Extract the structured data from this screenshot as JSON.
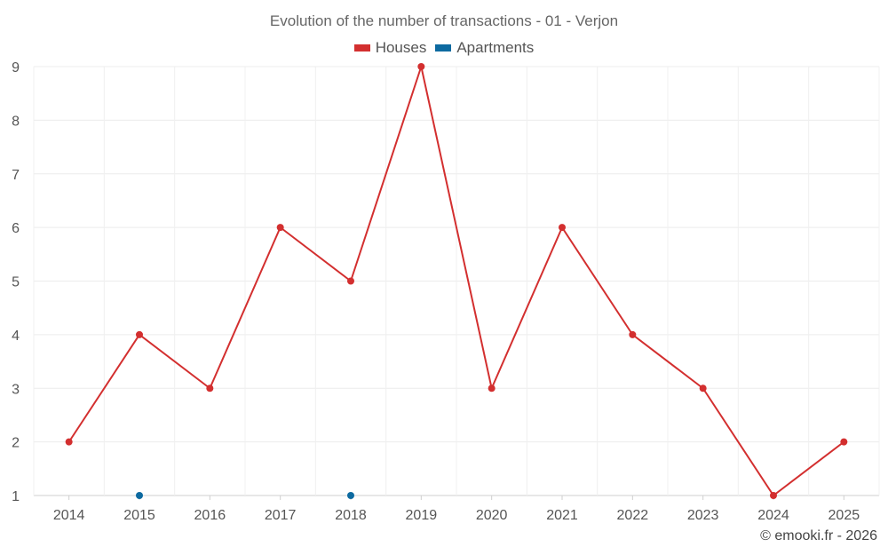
{
  "chart_data": {
    "type": "line",
    "title": "Evolution of the number of transactions - 01 - Verjon",
    "categories": [
      "2014",
      "2015",
      "2016",
      "2017",
      "2018",
      "2019",
      "2020",
      "2021",
      "2022",
      "2023",
      "2024",
      "2025"
    ],
    "series": [
      {
        "name": "Houses",
        "color": "#d32f2f",
        "values": [
          2,
          4,
          3,
          6,
          5,
          9,
          3,
          6,
          4,
          3,
          1,
          2
        ]
      },
      {
        "name": "Apartments",
        "color": "#0d6aa0",
        "values": [
          null,
          1,
          null,
          null,
          1,
          null,
          null,
          null,
          null,
          null,
          null,
          null
        ]
      }
    ],
    "ylim": [
      1,
      9
    ],
    "yticks": [
      1,
      2,
      3,
      4,
      5,
      6,
      7,
      8,
      9
    ],
    "xlabel": "",
    "ylabel": "",
    "grid": true,
    "legend_position": "top-center"
  },
  "footer": {
    "copyright": "© emooki.fr - 2026"
  }
}
